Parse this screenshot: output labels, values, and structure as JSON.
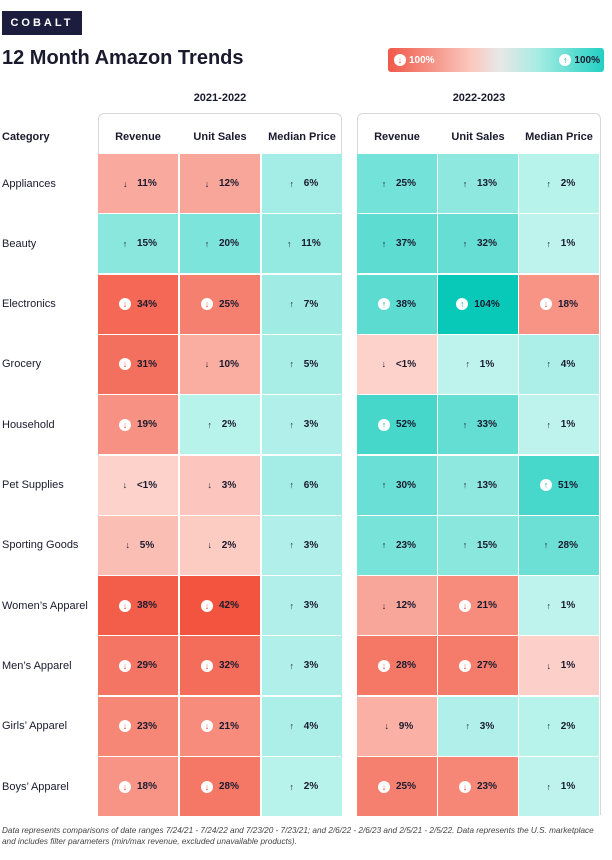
{
  "brand": "COBALT",
  "title": "12 Month Amazon Trends",
  "legend": {
    "low_label": "100%",
    "high_label": "100%",
    "low_color": "#f0584a",
    "high_color": "#22d0c4"
  },
  "chart_data": {
    "type": "heatmap",
    "title": "12 Month Amazon Trends",
    "row_header": "Category",
    "periods": [
      {
        "label": "2021-2022",
        "columns": [
          "Revenue",
          "Unit Sales",
          "Median Price"
        ]
      },
      {
        "label": "2022-2023",
        "columns": [
          "Revenue",
          "Unit Sales",
          "Median Price"
        ]
      }
    ],
    "rows": [
      {
        "category": "Appliances",
        "cells": [
          {
            "dir": "down",
            "text": "11%",
            "value": -11
          },
          {
            "dir": "down",
            "text": "12%",
            "value": -12
          },
          {
            "dir": "up",
            "text": "6%",
            "value": 6
          },
          {
            "dir": "up",
            "text": "25%",
            "value": 25
          },
          {
            "dir": "up",
            "text": "13%",
            "value": 13
          },
          {
            "dir": "up",
            "text": "2%",
            "value": 2
          }
        ]
      },
      {
        "category": "Beauty",
        "cells": [
          {
            "dir": "up",
            "text": "15%",
            "value": 15
          },
          {
            "dir": "up",
            "text": "20%",
            "value": 20
          },
          {
            "dir": "up",
            "text": "11%",
            "value": 11
          },
          {
            "dir": "up",
            "text": "37%",
            "value": 37
          },
          {
            "dir": "up",
            "text": "32%",
            "value": 32
          },
          {
            "dir": "up",
            "text": "1%",
            "value": 1
          }
        ]
      },
      {
        "category": "Electronics",
        "cells": [
          {
            "dir": "down",
            "text": "34%",
            "value": -34
          },
          {
            "dir": "down",
            "text": "25%",
            "value": -25
          },
          {
            "dir": "up",
            "text": "7%",
            "value": 7
          },
          {
            "dir": "up",
            "text": "38%",
            "value": 38
          },
          {
            "dir": "up",
            "text": "104%",
            "value": 104
          },
          {
            "dir": "down",
            "text": "18%",
            "value": -18
          }
        ]
      },
      {
        "category": "Grocery",
        "cells": [
          {
            "dir": "down",
            "text": "31%",
            "value": -31
          },
          {
            "dir": "down",
            "text": "10%",
            "value": -10
          },
          {
            "dir": "up",
            "text": "5%",
            "value": 5
          },
          {
            "dir": "down",
            "text": "<1%",
            "value": -0.5
          },
          {
            "dir": "up",
            "text": "1%",
            "value": 1
          },
          {
            "dir": "up",
            "text": "4%",
            "value": 4
          }
        ]
      },
      {
        "category": "Household",
        "cells": [
          {
            "dir": "down",
            "text": "19%",
            "value": -19
          },
          {
            "dir": "up",
            "text": "2%",
            "value": 2
          },
          {
            "dir": "up",
            "text": "3%",
            "value": 3
          },
          {
            "dir": "up",
            "text": "52%",
            "value": 52
          },
          {
            "dir": "up",
            "text": "33%",
            "value": 33
          },
          {
            "dir": "up",
            "text": "1%",
            "value": 1
          }
        ]
      },
      {
        "category": "Pet Supplies",
        "cells": [
          {
            "dir": "down",
            "text": "<1%",
            "value": -0.5
          },
          {
            "dir": "down",
            "text": "3%",
            "value": -3
          },
          {
            "dir": "up",
            "text": "6%",
            "value": 6
          },
          {
            "dir": "up",
            "text": "30%",
            "value": 30
          },
          {
            "dir": "up",
            "text": "13%",
            "value": 13
          },
          {
            "dir": "up",
            "text": "51%",
            "value": 51
          }
        ]
      },
      {
        "category": "Sporting Goods",
        "cells": [
          {
            "dir": "down",
            "text": "5%",
            "value": -5
          },
          {
            "dir": "down",
            "text": "2%",
            "value": -2
          },
          {
            "dir": "up",
            "text": "3%",
            "value": 3
          },
          {
            "dir": "up",
            "text": "23%",
            "value": 23
          },
          {
            "dir": "up",
            "text": "15%",
            "value": 15
          },
          {
            "dir": "up",
            "text": "28%",
            "value": 28
          }
        ]
      },
      {
        "category": "Women’s Apparel",
        "cells": [
          {
            "dir": "down",
            "text": "38%",
            "value": -38
          },
          {
            "dir": "down",
            "text": "42%",
            "value": -42
          },
          {
            "dir": "up",
            "text": "3%",
            "value": 3
          },
          {
            "dir": "down",
            "text": "12%",
            "value": -12
          },
          {
            "dir": "down",
            "text": "21%",
            "value": -21
          },
          {
            "dir": "up",
            "text": "1%",
            "value": 1
          }
        ]
      },
      {
        "category": "Men’s Apparel",
        "cells": [
          {
            "dir": "down",
            "text": "29%",
            "value": -29
          },
          {
            "dir": "down",
            "text": "32%",
            "value": -32
          },
          {
            "dir": "up",
            "text": "3%",
            "value": 3
          },
          {
            "dir": "down",
            "text": "28%",
            "value": -28
          },
          {
            "dir": "down",
            "text": "27%",
            "value": -27
          },
          {
            "dir": "down",
            "text": "1%",
            "value": -1
          }
        ]
      },
      {
        "category": "Girls’ Apparel",
        "cells": [
          {
            "dir": "down",
            "text": "23%",
            "value": -23
          },
          {
            "dir": "down",
            "text": "21%",
            "value": -21
          },
          {
            "dir": "up",
            "text": "4%",
            "value": 4
          },
          {
            "dir": "down",
            "text": "9%",
            "value": -9
          },
          {
            "dir": "up",
            "text": "3%",
            "value": 3
          },
          {
            "dir": "up",
            "text": "2%",
            "value": 2
          }
        ]
      },
      {
        "category": "Boys’ Apparel",
        "cells": [
          {
            "dir": "down",
            "text": "18%",
            "value": -18
          },
          {
            "dir": "down",
            "text": "28%",
            "value": -28
          },
          {
            "dir": "up",
            "text": "2%",
            "value": 2
          },
          {
            "dir": "down",
            "text": "25%",
            "value": -25
          },
          {
            "dir": "down",
            "text": "23%",
            "value": -23
          },
          {
            "dir": "up",
            "text": "1%",
            "value": 1
          }
        ]
      }
    ]
  },
  "footnote": "Data represents comparisons of date ranges 7/24/21 - 7/24/22 and 7/23/20 - 7/23/21; and 2/6/22 - 2/6/23 and 2/5/21 - 2/5/22. Data represents the U.S. marketplace and includes filter parameters (min/max revenue, excluded unavailable products)."
}
